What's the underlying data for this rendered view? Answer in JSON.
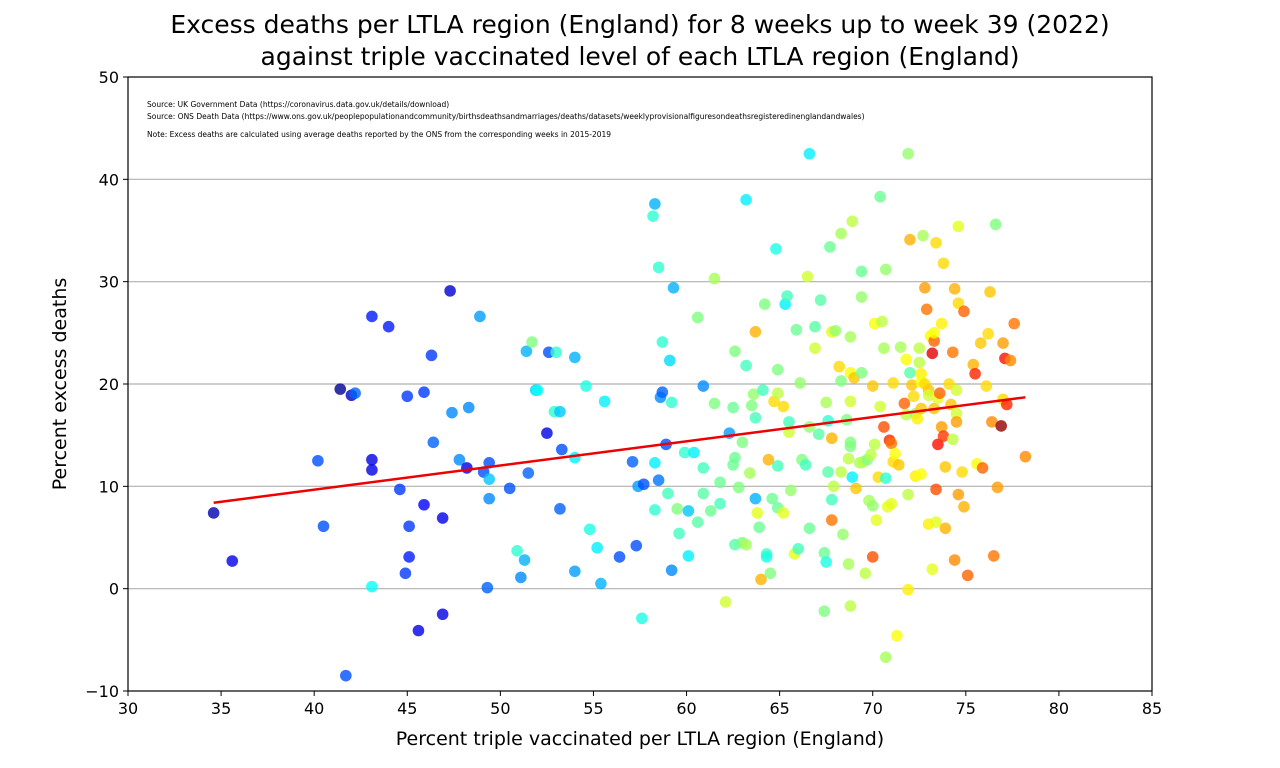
{
  "chart_data": {
    "type": "scatter",
    "title": [
      "Excess deaths per LTLA region (England) for 8 weeks up to week 39 (2022)",
      "against triple vaccinated level of each LTLA region (England)"
    ],
    "xlabel": "Percent triple vaccinated per LTLA region (England)",
    "ylabel": "Percent excess deaths",
    "xlim": [
      30,
      85
    ],
    "ylim": [
      -10,
      50
    ],
    "xticks": [
      30,
      35,
      40,
      45,
      50,
      55,
      60,
      65,
      70,
      75,
      80,
      85
    ],
    "yticks": [
      -10,
      0,
      10,
      20,
      30,
      40,
      50
    ],
    "ytick_labels": [
      "−10",
      "0",
      "10",
      "20",
      "30",
      "40",
      "50"
    ],
    "grid": "horizontal",
    "annotations": [
      "Source: UK Government Data (https://coronavirus.data.gov.uk/details/download)",
      "Source: ONS Death Data (https://www.ons.gov.uk/peoplepopulationandcommunity/birthsdeathsandmarriages/deaths/datasets/weeklyprovisionalfiguresondeathsregisteredinenglandandwales)",
      "Note: Excess deaths are calculated using average deaths reported by the ONS from the corresponding weeks in 2015-2019"
    ],
    "trendline": {
      "color": "#ee0000",
      "x": [
        34.6,
        78.2
      ],
      "y": [
        8.4,
        18.7
      ]
    },
    "colormap": "jet",
    "points": [
      [
        34.6,
        7.4,
        0.05
      ],
      [
        35.6,
        2.7,
        0.1
      ],
      [
        40.2,
        12.5,
        0.2
      ],
      [
        40.5,
        6.1,
        0.2
      ],
      [
        41.4,
        19.5,
        0.02
      ],
      [
        41.7,
        -8.5,
        0.2
      ],
      [
        42.0,
        18.9,
        0.06
      ],
      [
        42.2,
        19.1,
        0.22
      ],
      [
        43.1,
        26.6,
        0.15
      ],
      [
        43.1,
        12.6,
        0.1
      ],
      [
        43.1,
        11.6,
        0.1
      ],
      [
        43.1,
        0.2,
        0.38
      ],
      [
        44.0,
        25.6,
        0.15
      ],
      [
        44.6,
        9.7,
        0.18
      ],
      [
        44.9,
        1.5,
        0.18
      ],
      [
        45.0,
        18.8,
        0.18
      ],
      [
        45.1,
        6.1,
        0.18
      ],
      [
        45.1,
        3.1,
        0.15
      ],
      [
        45.6,
        -4.1,
        0.1
      ],
      [
        45.9,
        19.2,
        0.18
      ],
      [
        45.9,
        8.2,
        0.12
      ],
      [
        46.3,
        22.8,
        0.18
      ],
      [
        46.4,
        14.3,
        0.22
      ],
      [
        46.9,
        6.9,
        0.1
      ],
      [
        46.9,
        -2.5,
        0.1
      ],
      [
        47.3,
        29.1,
        0.08
      ],
      [
        47.4,
        17.2,
        0.26
      ],
      [
        47.8,
        12.6,
        0.26
      ],
      [
        48.2,
        11.8,
        0.1
      ],
      [
        48.3,
        17.7,
        0.26
      ],
      [
        48.9,
        26.6,
        0.28
      ],
      [
        49.1,
        11.4,
        0.2
      ],
      [
        49.3,
        0.1,
        0.22
      ],
      [
        49.4,
        12.3,
        0.2
      ],
      [
        49.4,
        8.8,
        0.26
      ],
      [
        49.4,
        10.7,
        0.32
      ],
      [
        50.5,
        9.8,
        0.2
      ],
      [
        50.9,
        3.7,
        0.42
      ],
      [
        51.1,
        1.1,
        0.26
      ],
      [
        51.3,
        2.8,
        0.3
      ],
      [
        51.4,
        23.2,
        0.3
      ],
      [
        51.5,
        11.3,
        0.22
      ],
      [
        51.7,
        24.1,
        0.5
      ],
      [
        51.9,
        19.4,
        0.33
      ],
      [
        52.0,
        19.4,
        0.38
      ],
      [
        52.5,
        15.2,
        0.1
      ],
      [
        52.6,
        23.1,
        0.2
      ],
      [
        52.9,
        17.3,
        0.42
      ],
      [
        53.0,
        23.1,
        0.42
      ],
      [
        53.2,
        17.3,
        0.32
      ],
      [
        53.2,
        7.8,
        0.22
      ],
      [
        53.3,
        13.6,
        0.2
      ],
      [
        54.0,
        22.6,
        0.3
      ],
      [
        54.0,
        12.8,
        0.36
      ],
      [
        54.0,
        1.7,
        0.28
      ],
      [
        54.6,
        19.8,
        0.4
      ],
      [
        54.8,
        5.8,
        0.4
      ],
      [
        55.2,
        4.0,
        0.36
      ],
      [
        55.4,
        0.5,
        0.3
      ],
      [
        55.6,
        18.3,
        0.36
      ],
      [
        56.4,
        3.1,
        0.2
      ],
      [
        57.1,
        12.4,
        0.22
      ],
      [
        57.3,
        4.2,
        0.2
      ],
      [
        57.4,
        10.0,
        0.28
      ],
      [
        57.6,
        -2.9,
        0.4
      ],
      [
        57.7,
        10.2,
        0.2
      ],
      [
        58.2,
        36.4,
        0.42
      ],
      [
        58.3,
        37.6,
        0.3
      ],
      [
        58.3,
        12.3,
        0.36
      ],
      [
        58.3,
        7.7,
        0.42
      ],
      [
        58.5,
        31.4,
        0.42
      ],
      [
        58.5,
        10.6,
        0.24
      ],
      [
        58.6,
        18.7,
        0.26
      ],
      [
        58.7,
        24.1,
        0.42
      ],
      [
        58.7,
        19.2,
        0.22
      ],
      [
        58.9,
        14.1,
        0.2
      ],
      [
        59.0,
        9.3,
        0.44
      ],
      [
        59.1,
        22.3,
        0.34
      ],
      [
        59.2,
        1.8,
        0.26
      ],
      [
        59.2,
        18.2,
        0.42
      ],
      [
        59.3,
        29.4,
        0.3
      ],
      [
        59.5,
        7.8,
        0.5
      ],
      [
        59.6,
        5.4,
        0.44
      ],
      [
        59.9,
        13.3,
        0.42
      ],
      [
        60.1,
        3.2,
        0.36
      ],
      [
        60.1,
        7.6,
        0.32
      ],
      [
        60.4,
        13.3,
        0.36
      ],
      [
        60.6,
        6.5,
        0.46
      ],
      [
        60.6,
        26.5,
        0.5
      ],
      [
        60.9,
        19.8,
        0.26
      ],
      [
        60.9,
        11.8,
        0.44
      ],
      [
        60.9,
        9.3,
        0.46
      ],
      [
        61.3,
        7.6,
        0.48
      ],
      [
        61.5,
        30.3,
        0.54
      ],
      [
        61.5,
        18.1,
        0.5
      ],
      [
        61.8,
        10.4,
        0.48
      ],
      [
        61.8,
        8.3,
        0.44
      ],
      [
        62.1,
        -1.3,
        0.58
      ],
      [
        62.3,
        15.2,
        0.28
      ],
      [
        62.5,
        17.7,
        0.48
      ],
      [
        62.5,
        12.1,
        0.48
      ],
      [
        62.6,
        23.2,
        0.5
      ],
      [
        62.6,
        12.8,
        0.48
      ],
      [
        62.6,
        4.3,
        0.46
      ],
      [
        62.8,
        9.9,
        0.5
      ],
      [
        63.0,
        14.3,
        0.5
      ],
      [
        63.0,
        4.5,
        0.5
      ],
      [
        63.2,
        38.0,
        0.36
      ],
      [
        63.2,
        21.8,
        0.44
      ],
      [
        63.2,
        4.3,
        0.54
      ],
      [
        63.4,
        11.3,
        0.54
      ],
      [
        63.5,
        17.9,
        0.5
      ],
      [
        63.6,
        19.0,
        0.52
      ],
      [
        63.7,
        16.7,
        0.44
      ],
      [
        63.7,
        25.1,
        0.7
      ],
      [
        63.7,
        8.8,
        0.3
      ],
      [
        63.8,
        7.4,
        0.6
      ],
      [
        63.9,
        6.0,
        0.48
      ],
      [
        64.0,
        0.9,
        0.7
      ],
      [
        64.1,
        19.4,
        0.44
      ],
      [
        64.2,
        27.8,
        0.5
      ],
      [
        64.3,
        3.4,
        0.44
      ],
      [
        64.3,
        3.1,
        0.4
      ],
      [
        64.4,
        12.6,
        0.7
      ],
      [
        64.5,
        1.5,
        0.5
      ],
      [
        64.6,
        8.8,
        0.48
      ],
      [
        64.7,
        18.3,
        0.66
      ],
      [
        64.8,
        33.2,
        0.4
      ],
      [
        64.9,
        21.4,
        0.5
      ],
      [
        64.9,
        12.0,
        0.44
      ],
      [
        64.9,
        7.9,
        0.48
      ],
      [
        64.9,
        19.1,
        0.56
      ],
      [
        65.2,
        17.8,
        0.66
      ],
      [
        65.2,
        7.4,
        0.6
      ],
      [
        65.3,
        27.8,
        0.36
      ],
      [
        65.4,
        28.6,
        0.44
      ],
      [
        65.5,
        16.3,
        0.44
      ],
      [
        65.5,
        15.3,
        0.58
      ],
      [
        65.6,
        9.6,
        0.52
      ],
      [
        65.8,
        3.4,
        0.6
      ],
      [
        65.9,
        25.3,
        0.48
      ],
      [
        66.0,
        3.9,
        0.44
      ],
      [
        66.1,
        20.1,
        0.52
      ],
      [
        66.2,
        12.6,
        0.5
      ],
      [
        66.4,
        12.1,
        0.44
      ],
      [
        66.5,
        30.5,
        0.58
      ],
      [
        66.6,
        42.5,
        0.36
      ],
      [
        66.6,
        5.9,
        0.48
      ],
      [
        66.6,
        15.8,
        0.52
      ],
      [
        66.9,
        25.6,
        0.46
      ],
      [
        66.9,
        23.5,
        0.58
      ],
      [
        67.1,
        15.1,
        0.46
      ],
      [
        67.2,
        28.2,
        0.46
      ],
      [
        67.4,
        3.5,
        0.48
      ],
      [
        67.4,
        -2.2,
        0.5
      ],
      [
        67.5,
        18.2,
        0.54
      ],
      [
        67.5,
        2.6,
        0.4
      ],
      [
        67.6,
        11.4,
        0.46
      ],
      [
        67.6,
        16.4,
        0.42
      ],
      [
        67.7,
        33.4,
        0.48
      ],
      [
        67.8,
        25.1,
        0.6
      ],
      [
        67.8,
        14.7,
        0.7
      ],
      [
        67.8,
        8.7,
        0.44
      ],
      [
        67.8,
        6.7,
        0.76
      ],
      [
        67.9,
        10.0,
        0.56
      ],
      [
        68.0,
        25.2,
        0.52
      ],
      [
        68.2,
        21.7,
        0.66
      ],
      [
        68.3,
        34.7,
        0.54
      ],
      [
        68.3,
        20.3,
        0.5
      ],
      [
        68.3,
        11.4,
        0.56
      ],
      [
        68.4,
        5.3,
        0.52
      ],
      [
        68.6,
        16.5,
        0.5
      ],
      [
        68.7,
        12.7,
        0.56
      ],
      [
        68.7,
        2.4,
        0.54
      ],
      [
        68.8,
        -1.7,
        0.56
      ],
      [
        68.8,
        24.6,
        0.54
      ],
      [
        68.8,
        21.1,
        0.62
      ],
      [
        68.8,
        18.3,
        0.58
      ],
      [
        68.8,
        14.3,
        0.5
      ],
      [
        68.8,
        13.9,
        0.5
      ],
      [
        68.9,
        35.9,
        0.56
      ],
      [
        68.9,
        10.9,
        0.36
      ],
      [
        69.0,
        20.6,
        0.68
      ],
      [
        69.1,
        9.8,
        0.68
      ],
      [
        69.3,
        12.3,
        0.54
      ],
      [
        69.4,
        31.0,
        0.48
      ],
      [
        69.4,
        28.5,
        0.52
      ],
      [
        69.4,
        21.1,
        0.5
      ],
      [
        69.5,
        12.4,
        0.56
      ],
      [
        69.6,
        1.5,
        0.56
      ],
      [
        69.7,
        12.6,
        0.5
      ],
      [
        69.8,
        8.6,
        0.54
      ],
      [
        69.9,
        13.1,
        0.56
      ],
      [
        70.0,
        3.1,
        0.8
      ],
      [
        70.0,
        19.8,
        0.68
      ],
      [
        70.0,
        8.1,
        0.52
      ],
      [
        70.1,
        25.9,
        0.62
      ],
      [
        70.1,
        14.1,
        0.56
      ],
      [
        70.2,
        6.7,
        0.6
      ],
      [
        70.3,
        10.9,
        0.66
      ],
      [
        70.4,
        38.3,
        0.48
      ],
      [
        70.4,
        17.8,
        0.58
      ],
      [
        70.5,
        26.1,
        0.56
      ],
      [
        70.6,
        15.8,
        0.8
      ],
      [
        70.6,
        23.5,
        0.54
      ],
      [
        70.7,
        31.2,
        0.52
      ],
      [
        70.7,
        -6.7,
        0.54
      ],
      [
        70.7,
        10.8,
        0.42
      ],
      [
        70.8,
        8.0,
        0.6
      ],
      [
        70.9,
        14.5,
        0.84
      ],
      [
        71.0,
        14.2,
        0.76
      ],
      [
        71.0,
        8.3,
        0.6
      ],
      [
        71.1,
        20.1,
        0.66
      ],
      [
        71.1,
        12.4,
        0.66
      ],
      [
        71.2,
        13.2,
        0.62
      ],
      [
        71.3,
        -4.6,
        0.62
      ],
      [
        71.4,
        12.1,
        0.68
      ],
      [
        71.5,
        23.6,
        0.54
      ],
      [
        71.7,
        18.1,
        0.78
      ],
      [
        71.8,
        22.4,
        0.62
      ],
      [
        71.8,
        17.0,
        0.56
      ],
      [
        71.9,
        9.2,
        0.56
      ],
      [
        71.9,
        -0.1,
        0.64
      ],
      [
        71.9,
        42.5,
        0.52
      ],
      [
        72.0,
        21.1,
        0.46
      ],
      [
        72.0,
        34.1,
        0.7
      ],
      [
        72.1,
        19.9,
        0.68
      ],
      [
        72.2,
        18.8,
        0.66
      ],
      [
        72.3,
        17.1,
        0.52
      ],
      [
        72.3,
        11.0,
        0.64
      ],
      [
        72.4,
        16.6,
        0.64
      ],
      [
        72.5,
        23.5,
        0.56
      ],
      [
        72.5,
        22.1,
        0.56
      ],
      [
        72.6,
        21.0,
        0.64
      ],
      [
        72.6,
        20.2,
        0.62
      ],
      [
        72.6,
        17.6,
        0.68
      ],
      [
        72.6,
        11.2,
        0.62
      ],
      [
        72.7,
        34.5,
        0.54
      ],
      [
        72.8,
        20.0,
        0.66
      ],
      [
        72.8,
        29.4,
        0.72
      ],
      [
        72.9,
        27.3,
        0.76
      ],
      [
        73.0,
        19.4,
        0.68
      ],
      [
        73.0,
        18.9,
        0.58
      ],
      [
        73.0,
        6.3,
        0.64
      ],
      [
        73.1,
        24.7,
        0.62
      ],
      [
        73.2,
        23.0,
        0.9
      ],
      [
        73.2,
        1.9,
        0.6
      ],
      [
        73.3,
        24.2,
        0.78
      ],
      [
        73.3,
        17.6,
        0.68
      ],
      [
        73.3,
        25.0,
        0.62
      ],
      [
        73.4,
        33.8,
        0.66
      ],
      [
        73.4,
        6.5,
        0.6
      ],
      [
        73.4,
        9.7,
        0.8
      ],
      [
        73.5,
        14.1,
        0.86
      ],
      [
        73.5,
        18.6,
        0.6
      ],
      [
        73.6,
        19.1,
        0.78
      ],
      [
        73.7,
        15.8,
        0.72
      ],
      [
        73.7,
        25.9,
        0.64
      ],
      [
        73.8,
        31.8,
        0.66
      ],
      [
        73.8,
        14.9,
        0.82
      ],
      [
        73.9,
        11.9,
        0.68
      ],
      [
        73.9,
        5.9,
        0.7
      ],
      [
        74.1,
        20.0,
        0.66
      ],
      [
        74.2,
        18.0,
        0.68
      ],
      [
        74.3,
        14.6,
        0.56
      ],
      [
        74.3,
        23.1,
        0.76
      ],
      [
        74.4,
        29.3,
        0.7
      ],
      [
        74.4,
        2.8,
        0.74
      ],
      [
        74.5,
        17.1,
        0.58
      ],
      [
        74.5,
        16.3,
        0.72
      ],
      [
        74.5,
        19.4,
        0.58
      ],
      [
        74.6,
        35.4,
        0.6
      ],
      [
        74.6,
        27.9,
        0.66
      ],
      [
        74.6,
        9.2,
        0.72
      ],
      [
        74.8,
        11.4,
        0.66
      ],
      [
        74.9,
        27.1,
        0.78
      ],
      [
        74.9,
        8.0,
        0.7
      ],
      [
        75.1,
        1.3,
        0.78
      ],
      [
        75.4,
        21.9,
        0.7
      ],
      [
        75.5,
        21.0,
        0.84
      ],
      [
        75.6,
        12.2,
        0.62
      ],
      [
        75.8,
        24.0,
        0.68
      ],
      [
        75.9,
        11.8,
        0.78
      ],
      [
        76.1,
        19.8,
        0.66
      ],
      [
        76.2,
        24.9,
        0.66
      ],
      [
        76.3,
        29.0,
        0.68
      ],
      [
        76.4,
        16.3,
        0.74
      ],
      [
        76.5,
        3.2,
        0.76
      ],
      [
        76.6,
        35.6,
        0.5
      ],
      [
        76.7,
        9.9,
        0.72
      ],
      [
        76.9,
        15.9,
        0.98
      ],
      [
        77.0,
        18.5,
        0.66
      ],
      [
        77.0,
        24.0,
        0.72
      ],
      [
        77.1,
        22.5,
        0.86
      ],
      [
        77.2,
        18.0,
        0.84
      ],
      [
        77.4,
        22.3,
        0.74
      ],
      [
        77.6,
        25.9,
        0.76
      ],
      [
        78.2,
        12.9,
        0.74
      ]
    ]
  }
}
